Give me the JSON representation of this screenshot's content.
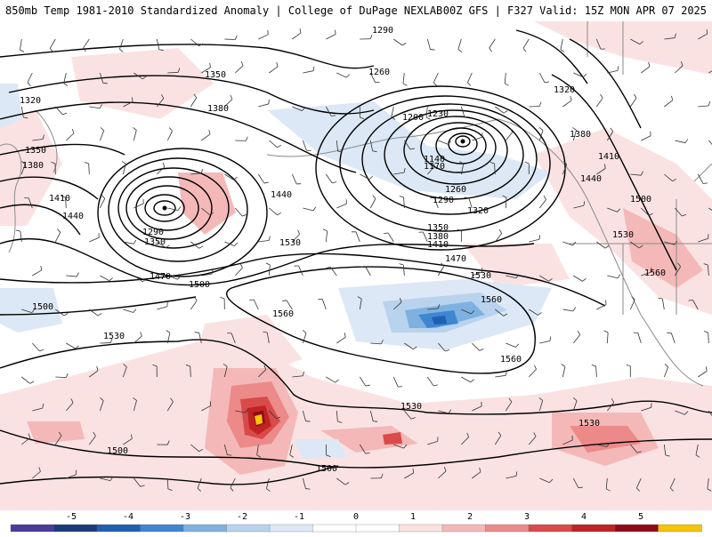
{
  "title": {
    "left": "850mb Temp 1981-2010 Standardized Anomaly | College of DuPage NEXLAB",
    "right": "00Z GFS | F327 Valid: 15Z MON APR 07 2025"
  },
  "colors": {
    "contour": "#000000",
    "coast": "#8a8a8a",
    "cold": [
      "#dce8f5",
      "#b9d3ee",
      "#7fb1e0",
      "#3f86d1",
      "#1f5fb0",
      "#1b3a7a",
      "#4a3b9a"
    ],
    "warm": [
      "#fbe2e2",
      "#f4b8b8",
      "#ec8a8a",
      "#d94a4a",
      "#c02323",
      "#8e0c16",
      "#f6c400"
    ]
  },
  "contour_labels": [
    {
      "text": "1290"
    },
    {
      "text": "1260"
    },
    {
      "text": "1230"
    },
    {
      "text": "1200"
    },
    {
      "text": "1140"
    },
    {
      "text": "1170"
    },
    {
      "text": "1260"
    },
    {
      "text": "1290"
    },
    {
      "text": "1320"
    },
    {
      "text": "1350"
    },
    {
      "text": "1380"
    },
    {
      "text": "1410"
    },
    {
      "text": "1470"
    },
    {
      "text": "1530"
    },
    {
      "text": "1350"
    },
    {
      "text": "1380"
    },
    {
      "text": "1320"
    },
    {
      "text": "1350"
    },
    {
      "text": "1380"
    },
    {
      "text": "1410"
    },
    {
      "text": "1440"
    },
    {
      "text": "1290"
    },
    {
      "text": "1350"
    },
    {
      "text": "1440"
    },
    {
      "text": "1470"
    },
    {
      "text": "1500"
    },
    {
      "text": "1530"
    },
    {
      "text": "1500"
    },
    {
      "text": "1560"
    },
    {
      "text": "1560"
    },
    {
      "text": "1560"
    },
    {
      "text": "1530"
    },
    {
      "text": "1530"
    },
    {
      "text": "1530"
    },
    {
      "text": "1500"
    },
    {
      "text": "1500"
    },
    {
      "text": "1320"
    },
    {
      "text": "1380"
    },
    {
      "text": "1410"
    },
    {
      "text": "1440"
    },
    {
      "text": "1500"
    },
    {
      "text": "1530"
    },
    {
      "text": "1560"
    }
  ],
  "colorbar": {
    "ticks": [
      "-5",
      "-4",
      "-3",
      "-2",
      "-1",
      "0",
      "1",
      "2",
      "3",
      "4",
      "5"
    ]
  }
}
